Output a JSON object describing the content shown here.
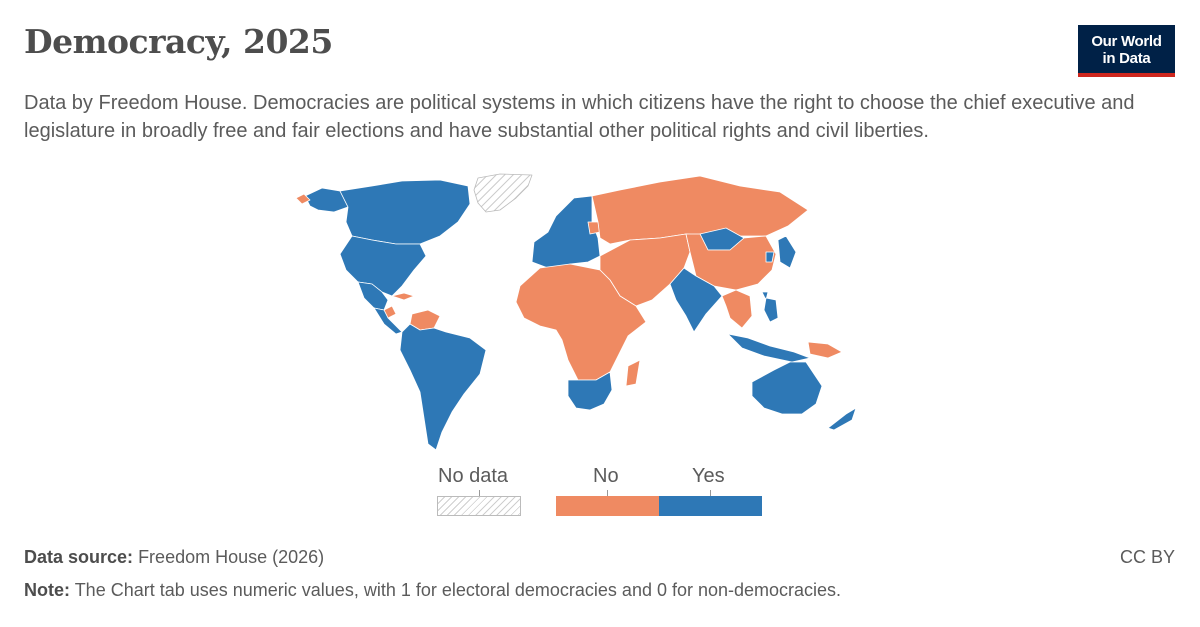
{
  "header": {
    "title": "Democracy, 2025",
    "subtitle": "Data by Freedom House. Democracies are political systems in which citizens have the right to choose the chief executive and legislature in broadly free and fair elections and have substantial other political rights and civil liberties."
  },
  "logo": {
    "line1": "Our World",
    "line2": "in Data"
  },
  "colors": {
    "no": "#ef8a62",
    "yes": "#2e78b6",
    "no_data": "#cfcfcf",
    "border": "#ffffff"
  },
  "legend": {
    "no_data_label": "No data",
    "no_label": "No",
    "yes_label": "Yes"
  },
  "map_data": {
    "categories": [
      "No data",
      "No",
      "Yes"
    ],
    "regions": [
      {
        "name": "North America (US, Canada)",
        "status": "Yes"
      },
      {
        "name": "Greenland",
        "status": "No data"
      },
      {
        "name": "Mexico",
        "status": "Yes"
      },
      {
        "name": "Nicaragua, Cuba, Venezuela",
        "status": "No"
      },
      {
        "name": "South America (rest)",
        "status": "Yes"
      },
      {
        "name": "Europe (most)",
        "status": "Yes"
      },
      {
        "name": "Russia, Belarus",
        "status": "No"
      },
      {
        "name": "Africa (most)",
        "status": "No"
      },
      {
        "name": "Southern Africa (South Africa, Namibia, Botswana)",
        "status": "Yes"
      },
      {
        "name": "Middle East & Central Asia",
        "status": "No"
      },
      {
        "name": "India",
        "status": "Yes"
      },
      {
        "name": "China",
        "status": "No"
      },
      {
        "name": "Mongolia",
        "status": "Yes"
      },
      {
        "name": "Japan, South Korea, Taiwan",
        "status": "Yes"
      },
      {
        "name": "Southeast Asia (most)",
        "status": "No"
      },
      {
        "name": "Indonesia, Philippines",
        "status": "Yes"
      },
      {
        "name": "Australia, New Zealand",
        "status": "Yes"
      },
      {
        "name": "Papua New Guinea",
        "status": "No"
      }
    ]
  },
  "footer": {
    "source_label": "Data source:",
    "source_value": "Freedom House (2026)",
    "note_label": "Note:",
    "note_value": "The Chart tab uses numeric values, with 1 for electoral democracies and 0 for non-democracies.",
    "license": "CC BY"
  }
}
